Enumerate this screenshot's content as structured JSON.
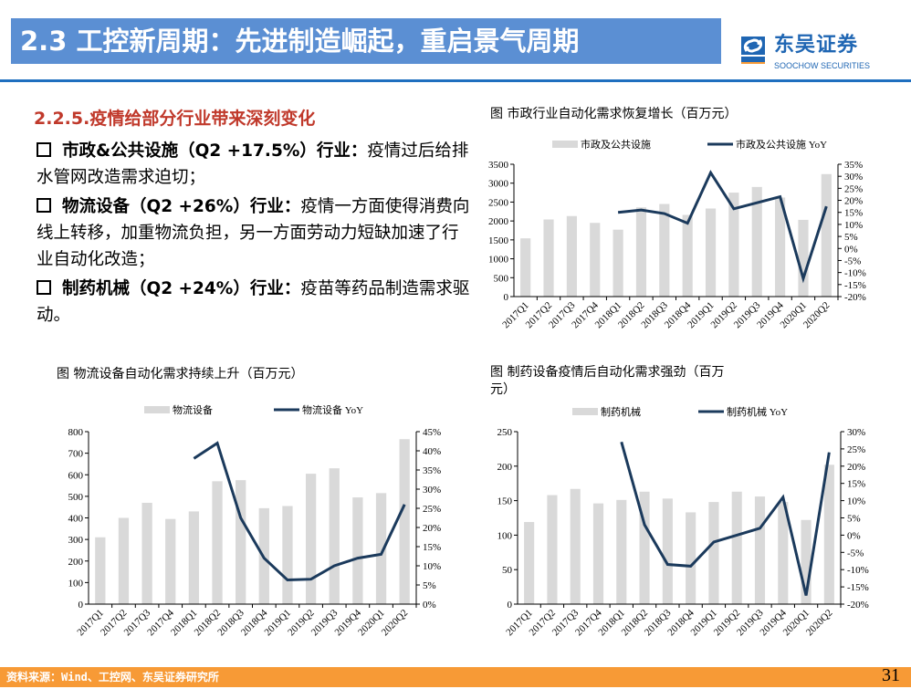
{
  "header": {
    "title": "2.3 工控新周期：先进制造崛起，重启景气周期",
    "logo_cn": "东吴证券",
    "logo_en": "SOOCHOW SECURITIES",
    "logo_mark": "SCS"
  },
  "left": {
    "heading": "2.2.5.疫情给部分行业带来深刻变化",
    "bullets": [
      {
        "bold": "市政&公共设施（Q2 +17.5%）行业：",
        "text": "疫情过后给排水管网改造需求迫切；"
      },
      {
        "bold": "物流设备（Q2 +26%）行业：",
        "text": "疫情一方面使得消费向线上转移，加重物流负担，另一方面劳动力短缺加速了行业自动化改造；"
      },
      {
        "bold": "制药机械（Q2 +24%）行业：",
        "text": "疫苗等药品制造需求驱动。"
      }
    ]
  },
  "footer": {
    "source": "资料来源：Wind、工控网、东吴证券研究所",
    "page": "31"
  },
  "colors": {
    "bar": "#d9d9d9",
    "line": "#1b3a5c",
    "title_bar": "#5b8fd3",
    "footer": "#f79a36",
    "heading": "#c0392b"
  },
  "chart_data": [
    {
      "type": "bar+line",
      "title": "图  市政行业自动化需求恢复增长（百万元）",
      "categories": [
        "2017Q1",
        "2017Q2",
        "2017Q3",
        "2017Q4",
        "2018Q1",
        "2018Q2",
        "2018Q3",
        "2018Q4",
        "2019Q1",
        "2019Q2",
        "2019Q3",
        "2019Q4",
        "2020Q1",
        "2020Q2"
      ],
      "series": [
        {
          "name": "市政及公共设施",
          "type": "bar",
          "axis": "left",
          "values": [
            1540,
            2040,
            2130,
            1950,
            1770,
            2360,
            2450,
            2160,
            2330,
            2750,
            2900,
            2620,
            2030,
            3240
          ]
        },
        {
          "name": "市政及公共设施 YoY",
          "type": "line",
          "axis": "right",
          "values": [
            null,
            null,
            null,
            null,
            15,
            16,
            14.5,
            10.5,
            31.5,
            16.5,
            19,
            21.5,
            -12.5,
            17.5
          ]
        }
      ],
      "ylim": [
        0,
        3500
      ],
      "yticks": [
        0,
        500,
        1000,
        1500,
        2000,
        2500,
        3000,
        3500
      ],
      "y2lim": [
        -20,
        35
      ],
      "y2ticks": [
        "-20%",
        "-15%",
        "-10%",
        "-5%",
        "0%",
        "5%",
        "10%",
        "15%",
        "20%",
        "25%",
        "30%",
        "35%"
      ],
      "legend": "top"
    },
    {
      "type": "bar+line",
      "title": "图  物流设备自动化需求持续上升（百万元）",
      "categories": [
        "2017Q1",
        "2017Q2",
        "2017Q3",
        "2017Q4",
        "2018Q1",
        "2018Q2",
        "2018Q3",
        "2018Q4",
        "2019Q1",
        "2019Q2",
        "2019Q3",
        "2019Q4",
        "2020Q1",
        "2020Q2"
      ],
      "series": [
        {
          "name": "物流设备",
          "type": "bar",
          "axis": "left",
          "values": [
            310,
            400,
            470,
            395,
            430,
            570,
            575,
            445,
            455,
            605,
            630,
            495,
            515,
            765
          ]
        },
        {
          "name": "物流设备 YoY",
          "type": "line",
          "axis": "right",
          "values": [
            null,
            null,
            null,
            null,
            38,
            42,
            22.5,
            12,
            6.3,
            6.5,
            10,
            12,
            13,
            26
          ]
        }
      ],
      "ylim": [
        0,
        800
      ],
      "yticks": [
        0,
        100,
        200,
        300,
        400,
        500,
        600,
        700,
        800
      ],
      "y2lim": [
        0,
        45
      ],
      "y2ticks": [
        "0%",
        "5%",
        "10%",
        "15%",
        "20%",
        "25%",
        "30%",
        "35%",
        "40%",
        "45%"
      ],
      "legend": "top"
    },
    {
      "type": "bar+line",
      "title": "图  制药设备疫情后自动化需求强劲（百万元）",
      "categories": [
        "2017Q1",
        "2017Q2",
        "2017Q3",
        "2017Q4",
        "2018Q1",
        "2018Q2",
        "2018Q3",
        "2018Q4",
        "2019Q1",
        "2019Q2",
        "2019Q3",
        "2019Q4",
        "2020Q1",
        "2020Q2"
      ],
      "series": [
        {
          "name": "制药机械",
          "type": "bar",
          "axis": "left",
          "values": [
            119,
            158,
            167,
            146,
            151,
            163,
            153,
            133,
            148,
            163,
            156,
            148,
            122,
            202
          ]
        },
        {
          "name": "制药机械 YoY",
          "type": "line",
          "axis": "right",
          "values": [
            null,
            null,
            null,
            null,
            27,
            3,
            -8.5,
            -9,
            -2,
            0,
            2,
            11,
            -17.5,
            24
          ]
        }
      ],
      "ylim": [
        0,
        250
      ],
      "yticks": [
        0,
        50,
        100,
        150,
        200,
        250
      ],
      "y2lim": [
        -20,
        30
      ],
      "y2ticks": [
        "-20%",
        "-15%",
        "-10%",
        "-5%",
        "0%",
        "5%",
        "10%",
        "15%",
        "20%",
        "25%",
        "30%"
      ],
      "legend": "top"
    }
  ]
}
